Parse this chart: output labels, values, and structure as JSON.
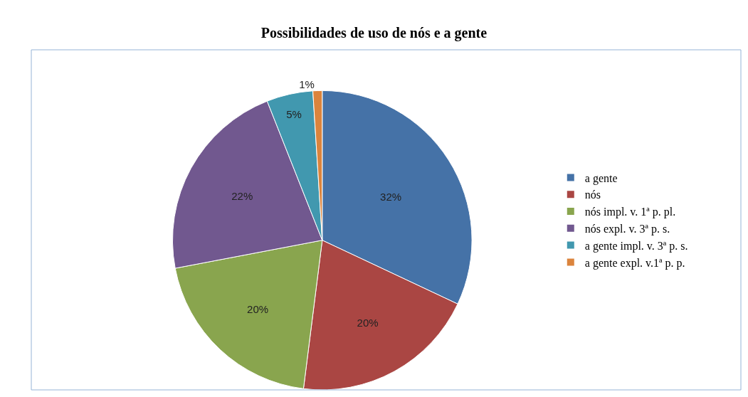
{
  "chart_data": {
    "type": "pie",
    "title": "Possibilidades de uso de nós e a gente",
    "categories": [
      "a gente",
      "nós",
      "nós impl. v. 1ª p. pl.",
      "nós expl. v. 3ª p. s.",
      "a gente impl. v. 3ª p. s.",
      "a gente expl. v.1ª p. p."
    ],
    "values": [
      32,
      20,
      20,
      22,
      5,
      1
    ],
    "value_labels": [
      "32%",
      "20%",
      "20%",
      "22%",
      "5%",
      "1%"
    ],
    "colors": [
      "#4572a7",
      "#aa4643",
      "#89a54e",
      "#71588f",
      "#4198af",
      "#db843d"
    ],
    "legend": "right"
  }
}
